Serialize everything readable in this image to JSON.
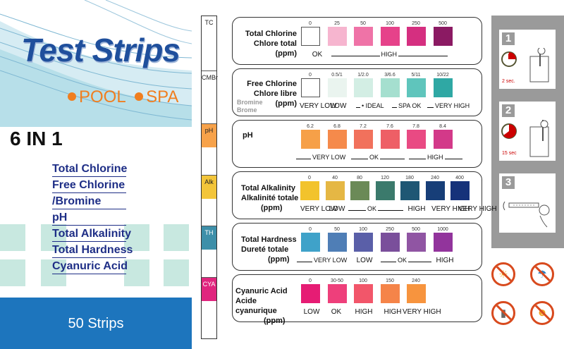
{
  "brand": {
    "title": "Test Strips",
    "pool": "POOL",
    "spa": "SPA",
    "subtitle": "6 IN 1"
  },
  "parameters": [
    "Total Chlorine",
    "Free Chlorine",
    "/Bromine",
    "pH",
    "Total Alkalinity",
    "Total Hardness",
    "Cyanuric Acid"
  ],
  "count_label": "50 Strips",
  "strip_pads": [
    "TC",
    "CMBr",
    "pH",
    "Alk",
    "TH",
    "CYA"
  ],
  "colors": {
    "brand_blue": "#1f4f9c",
    "accent_orange": "#f07e1f",
    "bottom_blue": "#1d75bd",
    "warning_red": "#d84a1e"
  },
  "panels": [
    {
      "label": [
        "Total Chlorine",
        "Chlore total",
        "(ppm)"
      ],
      "values": [
        "0",
        "25",
        "50",
        "100",
        "250",
        "500"
      ],
      "colors": [
        "#ffffff",
        "#f6b5cf",
        "#ef73a7",
        "#e6428a",
        "#d52f80",
        "#8b1a63"
      ],
      "ranges": [
        "OK",
        "HIGH"
      ]
    },
    {
      "label": [
        "Free Chlorine",
        "Chlore libre",
        "(ppm)"
      ],
      "extra": [
        "Bromine",
        "Brome"
      ],
      "values": [
        "0",
        "0.5/1",
        "1/2.0",
        "3/6.6",
        "5/11",
        "10/22"
      ],
      "colors": [
        "#ffffff",
        "#eaf4ef",
        "#d3eee4",
        "#a5dfcf",
        "#5fc5bc",
        "#2fa8a4"
      ],
      "ranges": [
        "VERY LOW",
        "LOW",
        "•  IDEAL",
        "SPA OK",
        "VERY HIGH"
      ]
    },
    {
      "label": [
        "pH"
      ],
      "values": [
        "6.2",
        "6.8",
        "7.2",
        "7.6",
        "7.8",
        "8.4"
      ],
      "colors": [
        "#f6a048",
        "#f58a4b",
        "#f1715c",
        "#ee5f66",
        "#e94a83",
        "#d33989"
      ],
      "ranges": [
        "VERY LOW",
        "OK",
        "HIGH"
      ]
    },
    {
      "label": [
        "Total Alkalinity",
        "Alkalinité totale",
        "(ppm)"
      ],
      "values": [
        "0",
        "40",
        "80",
        "120",
        "180",
        "240",
        "400"
      ],
      "colors": [
        "#f2c32c",
        "#e5b744",
        "#6b8a57",
        "#3b7a6c",
        "#1f5774",
        "#173e78",
        "#16327a"
      ],
      "ranges": [
        "VERY LOW",
        "LOW",
        "OK",
        "HIGH",
        "VERY HIGH",
        "VERY HIGH"
      ]
    },
    {
      "label": [
        "Total Hardness",
        "Dureté totale",
        "(ppm)"
      ],
      "values": [
        "0",
        "50",
        "100",
        "250",
        "500",
        "1000"
      ],
      "colors": [
        "#3fa2c9",
        "#4f7eb6",
        "#5a5fa8",
        "#7a4f9b",
        "#9055a3",
        "#92349c"
      ],
      "ranges": [
        "VERY LOW",
        "LOW",
        "OK",
        "HIGH"
      ]
    },
    {
      "label": [
        "Cyanuric Acid",
        "Acide cyanurique",
        "(ppm)"
      ],
      "values": [
        "0",
        "30-50",
        "100",
        "150",
        "240"
      ],
      "colors": [
        "#e61c74",
        "#ee3f7b",
        "#f2566a",
        "#f58449",
        "#f7943e"
      ],
      "ranges": [
        "LOW",
        "OK",
        "HIGH",
        "HIGH",
        "VERY HIGH"
      ]
    }
  ],
  "steps": [
    {
      "num": "1",
      "time": "2 sec."
    },
    {
      "num": "2",
      "time": "15 sec"
    },
    {
      "num": "3",
      "time": ""
    }
  ],
  "warnings": [
    "no-sun-icon",
    "no-rain-icon",
    "no-spray-icon",
    "no-children-icon"
  ]
}
